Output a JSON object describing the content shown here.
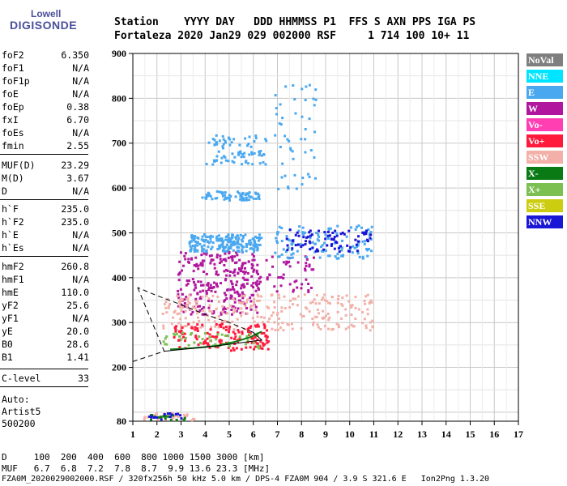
{
  "logo": {
    "line1": "Lowell",
    "line2": "DIGISONDE"
  },
  "header": {
    "line1": "Station    YYYY DAY   DDD HHMMSS P1  FFS S AXN PPS IGA PS",
    "line2": "Fortaleza 2020 Jan29 029 002000 RSF     1 714 100 10+ 11"
  },
  "params": [
    {
      "name": "foF2",
      "value": "6.350"
    },
    {
      "name": "foF1",
      "value": "N/A"
    },
    {
      "name": "foF1p",
      "value": "N/A"
    },
    {
      "name": "foE",
      "value": "N/A"
    },
    {
      "name": "foEp",
      "value": "0.38"
    },
    {
      "name": "fxI",
      "value": "6.70"
    },
    {
      "name": "foEs",
      "value": "N/A"
    },
    {
      "name": "fmin",
      "value": "2.55"
    },
    {
      "name": "MUF(D)",
      "value": "23.29"
    },
    {
      "name": "M(D)",
      "value": "3.67"
    },
    {
      "name": "D",
      "value": "N/A"
    },
    {
      "name": "h`F",
      "value": "235.0"
    },
    {
      "name": "h`F2",
      "value": "235.0"
    },
    {
      "name": "h`E",
      "value": "N/A"
    },
    {
      "name": "h`Es",
      "value": "N/A"
    },
    {
      "name": "hmF2",
      "value": "260.8"
    },
    {
      "name": "hmF1",
      "value": "N/A"
    },
    {
      "name": "hmE",
      "value": "110.0"
    },
    {
      "name": "yF2",
      "value": "25.6"
    },
    {
      "name": "yF1",
      "value": "N/A"
    },
    {
      "name": "yE",
      "value": "20.0"
    },
    {
      "name": "B0",
      "value": "28.6"
    },
    {
      "name": "B1",
      "value": "1.41"
    },
    {
      "name": "C-level",
      "value": "33"
    }
  ],
  "auto": {
    "line1": "Auto:",
    "line2": "Artist5",
    "line3": "500200"
  },
  "legend": [
    {
      "label": "NoVal",
      "color": "#7f7f7f"
    },
    {
      "label": "NNE",
      "color": "#00e5ff"
    },
    {
      "label": "E",
      "color": "#4aa8f0"
    },
    {
      "label": "W",
      "color": "#b0179e"
    },
    {
      "label": "Vo-",
      "color": "#ff3fb2"
    },
    {
      "label": "Vo+",
      "color": "#ff1a3c"
    },
    {
      "label": "SSW",
      "color": "#f2b0a8"
    },
    {
      "label": "X-",
      "color": "#0a7a14"
    },
    {
      "label": "X+",
      "color": "#7bc050"
    },
    {
      "label": "SSE",
      "color": "#cccc10"
    },
    {
      "label": "NNW",
      "color": "#1a16d6"
    }
  ],
  "footer": {
    "line1": "D     100  200  400  600  800 1000 1500 3000 [km]",
    "line2": "MUF   6.7  6.8  7.2  7.8  8.7  9.9 13.6 23.3 [MHz]",
    "line3": "FZA0M_2020029002000.RSF / 320fx256h 50 kHz 5.0 km / DPS-4 FZA0M 904 / 3.9 S 321.6 E   Ion2Png 1.3.20"
  },
  "chart_data": {
    "type": "scatter",
    "title": "",
    "xlabel": "",
    "ylabel": "",
    "xlim": [
      1,
      17
    ],
    "ylim": [
      80,
      900
    ],
    "x_ticks": [
      1,
      2,
      3,
      4,
      5,
      6,
      7,
      8,
      9,
      10,
      11,
      12,
      13,
      14,
      15,
      16,
      17
    ],
    "y_ticks": [
      80,
      200,
      300,
      400,
      500,
      600,
      700,
      800,
      900
    ],
    "grid": true,
    "legend_position": "right",
    "clusters": [
      {
        "mode": "W",
        "color": "#b0179e",
        "x_range": [
          2.8,
          6.2
        ],
        "y_range": [
          320,
          460
        ],
        "n": 260
      },
      {
        "mode": "W",
        "color": "#b0179e",
        "x_range": [
          5.0,
          8.5
        ],
        "y_range": [
          370,
          450
        ],
        "n": 70
      },
      {
        "mode": "E",
        "color": "#4aa8f0",
        "x_range": [
          3.3,
          6.3
        ],
        "y_range": [
          460,
          500
        ],
        "n": 200
      },
      {
        "mode": "E",
        "color": "#4aa8f0",
        "x_range": [
          6.8,
          11.0
        ],
        "y_range": [
          445,
          520
        ],
        "n": 120
      },
      {
        "mode": "E",
        "color": "#4aa8f0",
        "x_range": [
          3.8,
          6.2
        ],
        "y_range": [
          575,
          595
        ],
        "n": 70
      },
      {
        "mode": "E",
        "color": "#4aa8f0",
        "x_range": [
          4.0,
          6.5
        ],
        "y_range": [
          655,
          720
        ],
        "n": 80
      },
      {
        "mode": "E",
        "color": "#4aa8f0",
        "x_range": [
          6.8,
          8.6
        ],
        "y_range": [
          600,
          840
        ],
        "n": 50
      },
      {
        "mode": "NNW",
        "color": "#1a16d6",
        "x_range": [
          7.3,
          10.9
        ],
        "y_range": [
          460,
          510
        ],
        "n": 80
      },
      {
        "mode": "SSW",
        "color": "#f2b0a8",
        "x_range": [
          2.2,
          11.0
        ],
        "y_range": [
          285,
          365
        ],
        "n": 260
      },
      {
        "mode": "Vo+",
        "color": "#ff1a3c",
        "x_range": [
          2.6,
          6.6
        ],
        "y_range": [
          240,
          300
        ],
        "n": 140
      },
      {
        "mode": "X+",
        "color": "#7bc050",
        "x_range": [
          2.2,
          6.3
        ],
        "y_range": [
          245,
          280
        ],
        "n": 50
      },
      {
        "mode": "SSW",
        "color": "#f2b0a8",
        "x_range": [
          1.4,
          3.5
        ],
        "y_range": [
          85,
          100
        ],
        "n": 40
      },
      {
        "mode": "X-",
        "color": "#0a7a14",
        "x_range": [
          1.6,
          3.2
        ],
        "y_range": [
          85,
          100
        ],
        "n": 15
      },
      {
        "mode": "NNW",
        "color": "#1a16d6",
        "x_range": [
          1.6,
          3.0
        ],
        "y_range": [
          85,
          100
        ],
        "n": 15
      }
    ],
    "trace": {
      "name": "echo trace",
      "points": [
        [
          2.55,
          240
        ],
        [
          3.5,
          243
        ],
        [
          4.5,
          248
        ],
        [
          5.3,
          258
        ],
        [
          5.9,
          268
        ],
        [
          6.35,
          280
        ]
      ]
    },
    "profile": {
      "name": "profile",
      "points": [
        [
          2.3,
          236
        ],
        [
          4.5,
          248
        ],
        [
          6.35,
          261
        ],
        [
          6.0,
          278
        ],
        [
          5.0,
          300
        ],
        [
          4.0,
          318
        ],
        [
          3.0,
          340
        ],
        [
          2.0,
          360
        ],
        [
          1.2,
          378
        ]
      ],
      "dashed_points": [
        [
          1.2,
          378
        ],
        [
          2.3,
          236
        ],
        [
          1.0,
          213
        ]
      ]
    }
  }
}
